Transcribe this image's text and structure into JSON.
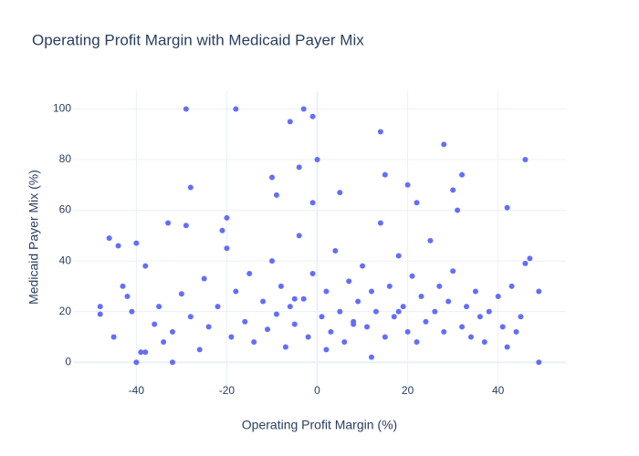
{
  "chart_data": {
    "type": "scatter",
    "title": "Operating Profit Margin with Medicaid Payer Mix",
    "x_label": "Operating Profit Margin (%)",
    "y_label": "Medicaid Payer Mix (%)",
    "color": "#636efa",
    "xlim": [
      -54,
      55
    ],
    "ylim": [
      -10,
      107
    ],
    "xticks": [
      -40,
      -20,
      0,
      20,
      40
    ],
    "yticks": [
      0,
      20,
      40,
      60,
      80,
      100
    ],
    "grid": true,
    "x": [
      -29,
      -18,
      -3,
      -6,
      -1,
      0,
      14,
      28,
      46,
      -4,
      -10,
      15,
      32,
      -28,
      -9,
      20,
      30,
      5,
      42,
      -1,
      22,
      31,
      -33,
      -29,
      -20,
      -21,
      -46,
      -44,
      -40,
      -48,
      -48,
      -42,
      -40,
      -32,
      -38,
      -39,
      49,
      49,
      47,
      46,
      -45,
      -43,
      -41,
      -38,
      -36,
      -35,
      -34,
      -32,
      -30,
      -28,
      -26,
      -25,
      -24,
      -22,
      -20,
      -19,
      -18,
      -16,
      -15,
      -14,
      -12,
      -11,
      -10,
      -9,
      -8,
      -7,
      -6,
      -5,
      -4,
      -3,
      -2,
      -1,
      1,
      2,
      3,
      4,
      5,
      6,
      7,
      8,
      9,
      10,
      11,
      12,
      13,
      14,
      15,
      16,
      17,
      18,
      19,
      20,
      21,
      22,
      23,
      24,
      25,
      26,
      27,
      28,
      29,
      30,
      32,
      33,
      34,
      35,
      36,
      37,
      38,
      40,
      41,
      42,
      43,
      44,
      45,
      2,
      8,
      12,
      18,
      -5
    ],
    "values": [
      100,
      100,
      100,
      95,
      97,
      80,
      91,
      86,
      80,
      77,
      73,
      74,
      74,
      69,
      66,
      70,
      68,
      67,
      61,
      63,
      63,
      60,
      55,
      54,
      57,
      52,
      49,
      46,
      47,
      22,
      19,
      26,
      0,
      0,
      4,
      4,
      28,
      0,
      41,
      39,
      10,
      30,
      20,
      38,
      15,
      22,
      8,
      12,
      27,
      18,
      5,
      33,
      14,
      22,
      45,
      10,
      28,
      16,
      35,
      8,
      24,
      13,
      40,
      19,
      30,
      6,
      22,
      15,
      50,
      25,
      10,
      35,
      18,
      28,
      12,
      44,
      20,
      8,
      32,
      16,
      24,
      38,
      14,
      28,
      20,
      55,
      10,
      30,
      18,
      42,
      22,
      12,
      34,
      8,
      26,
      16,
      48,
      20,
      30,
      12,
      24,
      36,
      14,
      22,
      10,
      28,
      18,
      8,
      20,
      26,
      14,
      6,
      30,
      12,
      18,
      5,
      15,
      2,
      20,
      25
    ]
  }
}
